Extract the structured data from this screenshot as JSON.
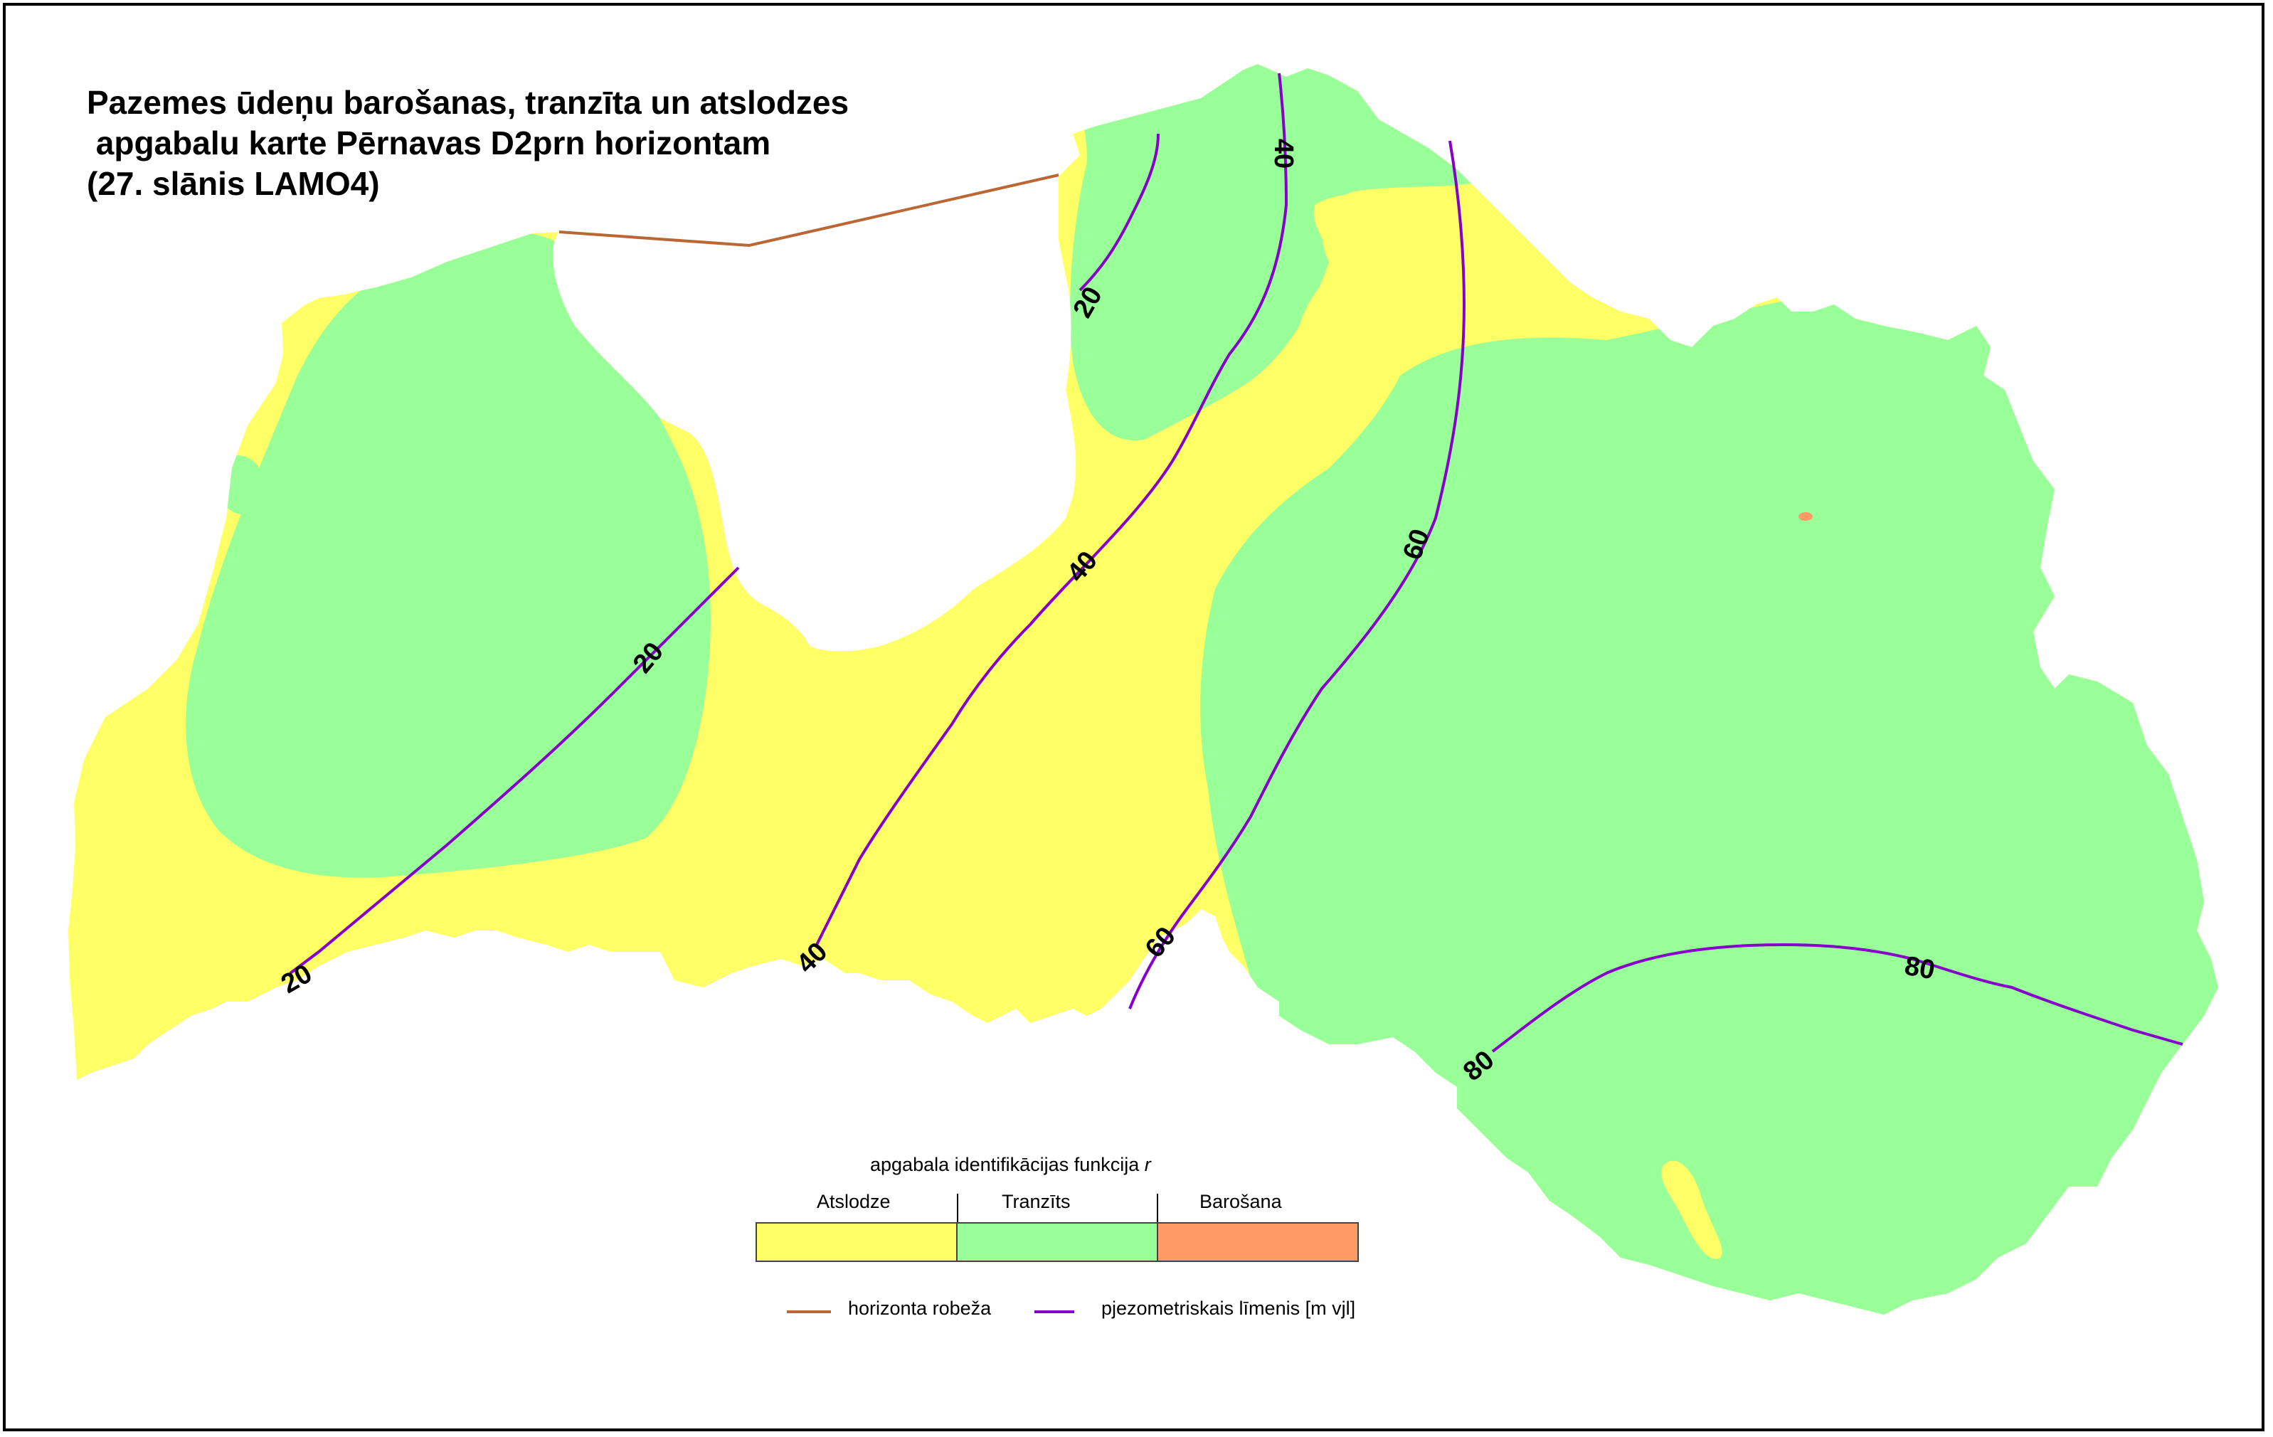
{
  "map": {
    "title_lines": [
      "Pazemes ūdeņu barošanas, tranzīta un atslodzes",
      " apgabalu karte Pērnavas D2prn horizontam",
      "(27. slānis LAMO4)"
    ],
    "zone_colors": {
      "atslodze": "#ffff66",
      "tranzits": "#99ff99",
      "barosana": "#ff9966",
      "boundary": "#000000",
      "horizon_boundary": "#bb6633",
      "isoline": "#8800cc"
    },
    "isoline_labels": [
      {
        "text": "20"
      },
      {
        "text": "20"
      },
      {
        "text": "20"
      },
      {
        "text": "40"
      },
      {
        "text": "40"
      },
      {
        "text": "40"
      },
      {
        "text": "60"
      },
      {
        "text": "60"
      },
      {
        "text": "80"
      },
      {
        "text": "80"
      }
    ]
  },
  "legend": {
    "title": "apgabala identifikācijas funkcija",
    "title_var": "r",
    "categories": [
      {
        "label": "Atslodze",
        "color": "#ffff66"
      },
      {
        "label": "Tranzīts",
        "color": "#99ff99"
      },
      {
        "label": "Barošana",
        "color": "#ff9966"
      }
    ],
    "line_items": [
      {
        "label": "horizonta robeža",
        "color": "#bb6633"
      },
      {
        "label": "pjezometriskais līmenis [m vjl]",
        "color": "#8800cc"
      }
    ]
  }
}
